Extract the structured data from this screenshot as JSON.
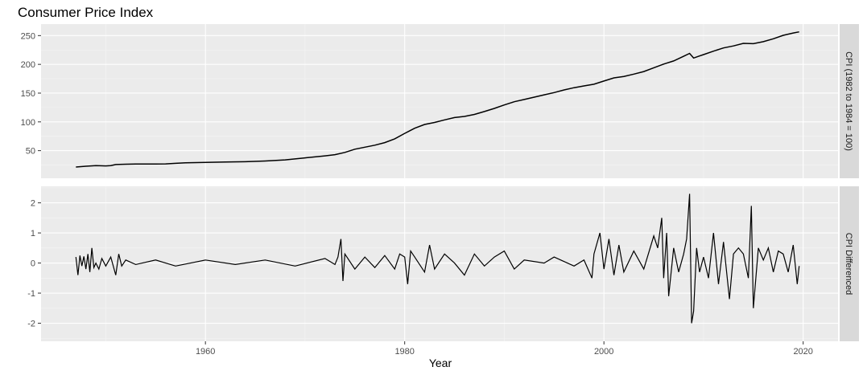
{
  "chart_data": {
    "type": "line",
    "title": "Consumer Price Index",
    "xlabel": "Year",
    "xlim": [
      1943.5,
      2023.5
    ],
    "x_ticks": [
      1960,
      1980,
      2000,
      2020
    ],
    "grid": true,
    "facets": [
      {
        "strip_label": "CPI (1982 to 1984 = 100)",
        "ylim": [
          2,
          270
        ],
        "y_ticks": [
          50,
          100,
          150,
          200,
          250
        ],
        "series": [
          {
            "points": [
              [
                1947.0,
                21.5
              ],
              [
                1948.0,
                23.0
              ],
              [
                1949.0,
                24.0
              ],
              [
                1950.0,
                23.5
              ],
              [
                1950.5,
                24.0
              ],
              [
                1951.0,
                25.8
              ],
              [
                1952.0,
                26.4
              ],
              [
                1953.0,
                26.8
              ],
              [
                1955.0,
                26.8
              ],
              [
                1956.0,
                27.0
              ],
              [
                1957.0,
                28.0
              ],
              [
                1958.0,
                28.8
              ],
              [
                1960.0,
                29.5
              ],
              [
                1962.0,
                30.2
              ],
              [
                1964.0,
                30.8
              ],
              [
                1966.0,
                32.0
              ],
              [
                1968.0,
                34.0
              ],
              [
                1970.0,
                37.5
              ],
              [
                1972.0,
                41.0
              ],
              [
                1973.0,
                43.0
              ],
              [
                1974.0,
                47.0
              ],
              [
                1975.0,
                52.5
              ],
              [
                1976.0,
                56.0
              ],
              [
                1977.0,
                59.5
              ],
              [
                1978.0,
                64.0
              ],
              [
                1979.0,
                70.5
              ],
              [
                1980.0,
                80.0
              ],
              [
                1981.0,
                89.0
              ],
              [
                1982.0,
                95.5
              ],
              [
                1983.0,
                99.0
              ],
              [
                1984.0,
                103.5
              ],
              [
                1985.0,
                107.5
              ],
              [
                1986.0,
                109.5
              ],
              [
                1987.0,
                113.0
              ],
              [
                1988.0,
                118.0
              ],
              [
                1989.0,
                123.5
              ],
              [
                1990.0,
                129.5
              ],
              [
                1991.0,
                135.0
              ],
              [
                1992.0,
                139.0
              ],
              [
                1993.0,
                143.0
              ],
              [
                1994.0,
                147.0
              ],
              [
                1995.0,
                151.0
              ],
              [
                1996.0,
                155.5
              ],
              [
                1997.0,
                159.5
              ],
              [
                1998.0,
                162.5
              ],
              [
                1999.0,
                165.5
              ],
              [
                2000.0,
                171.0
              ],
              [
                2001.0,
                176.5
              ],
              [
                2002.0,
                179.0
              ],
              [
                2003.0,
                183.0
              ],
              [
                2004.0,
                187.5
              ],
              [
                2005.0,
                194.0
              ],
              [
                2006.0,
                200.5
              ],
              [
                2007.0,
                206.0
              ],
              [
                2008.0,
                214.0
              ],
              [
                2008.6,
                219.0
              ],
              [
                2009.0,
                211.0
              ],
              [
                2009.5,
                214.0
              ],
              [
                2010.0,
                217.0
              ],
              [
                2011.0,
                223.0
              ],
              [
                2012.0,
                228.5
              ],
              [
                2013.0,
                232.0
              ],
              [
                2014.0,
                236.5
              ],
              [
                2015.0,
                236.0
              ],
              [
                2016.0,
                239.5
              ],
              [
                2017.0,
                244.5
              ],
              [
                2018.0,
                250.5
              ],
              [
                2019.0,
                254.5
              ],
              [
                2019.6,
                256.5
              ]
            ]
          }
        ]
      },
      {
        "strip_label": "CPI Differenced",
        "ylim": [
          -2.6,
          2.55
        ],
        "y_ticks": [
          -2,
          -1,
          0,
          1,
          2
        ],
        "series": [
          {
            "points": [
              [
                1947.0,
                0.2
              ],
              [
                1947.2,
                -0.4
              ],
              [
                1947.4,
                0.25
              ],
              [
                1947.6,
                -0.1
              ],
              [
                1947.8,
                0.22
              ],
              [
                1948.0,
                -0.2
              ],
              [
                1948.2,
                0.3
              ],
              [
                1948.4,
                -0.3
              ],
              [
                1948.6,
                0.5
              ],
              [
                1948.8,
                -0.15
              ],
              [
                1949.0,
                0.0
              ],
              [
                1949.3,
                -0.2
              ],
              [
                1949.6,
                0.15
              ],
              [
                1950.0,
                -0.1
              ],
              [
                1950.5,
                0.2
              ],
              [
                1951.0,
                -0.4
              ],
              [
                1951.3,
                0.3
              ],
              [
                1951.6,
                -0.1
              ],
              [
                1952.0,
                0.1
              ],
              [
                1953.0,
                -0.05
              ],
              [
                1955.0,
                0.1
              ],
              [
                1957.0,
                -0.1
              ],
              [
                1960.0,
                0.1
              ],
              [
                1963.0,
                -0.05
              ],
              [
                1966.0,
                0.1
              ],
              [
                1969.0,
                -0.1
              ],
              [
                1972.0,
                0.15
              ],
              [
                1973.0,
                -0.05
              ],
              [
                1973.3,
                0.2
              ],
              [
                1973.6,
                0.8
              ],
              [
                1973.8,
                -0.6
              ],
              [
                1974.0,
                0.3
              ],
              [
                1975.0,
                -0.2
              ],
              [
                1976.0,
                0.2
              ],
              [
                1977.0,
                -0.15
              ],
              [
                1978.0,
                0.25
              ],
              [
                1979.0,
                -0.2
              ],
              [
                1979.5,
                0.3
              ],
              [
                1980.0,
                0.2
              ],
              [
                1980.3,
                -0.7
              ],
              [
                1980.6,
                0.4
              ],
              [
                1981.0,
                0.2
              ],
              [
                1982.0,
                -0.3
              ],
              [
                1982.5,
                0.6
              ],
              [
                1983.0,
                -0.2
              ],
              [
                1984.0,
                0.3
              ],
              [
                1985.0,
                0.0
              ],
              [
                1986.0,
                -0.4
              ],
              [
                1987.0,
                0.3
              ],
              [
                1988.0,
                -0.1
              ],
              [
                1989.0,
                0.2
              ],
              [
                1990.0,
                0.4
              ],
              [
                1991.0,
                -0.2
              ],
              [
                1992.0,
                0.1
              ],
              [
                1994.0,
                0.0
              ],
              [
                1995.0,
                0.2
              ],
              [
                1997.0,
                -0.1
              ],
              [
                1998.0,
                0.1
              ],
              [
                1998.8,
                -0.5
              ],
              [
                1999.0,
                0.3
              ],
              [
                1999.6,
                1.0
              ],
              [
                2000.0,
                -0.2
              ],
              [
                2000.5,
                0.8
              ],
              [
                2001.0,
                -0.4
              ],
              [
                2001.5,
                0.6
              ],
              [
                2002.0,
                -0.3
              ],
              [
                2003.0,
                0.4
              ],
              [
                2004.0,
                -0.2
              ],
              [
                2005.0,
                0.9
              ],
              [
                2005.4,
                0.5
              ],
              [
                2005.8,
                1.5
              ],
              [
                2006.0,
                -0.5
              ],
              [
                2006.3,
                1.0
              ],
              [
                2006.5,
                -1.1
              ],
              [
                2007.0,
                0.5
              ],
              [
                2007.5,
                -0.3
              ],
              [
                2008.0,
                0.3
              ],
              [
                2008.3,
                0.8
              ],
              [
                2008.6,
                2.3
              ],
              [
                2008.8,
                -2.0
              ],
              [
                2009.0,
                -1.6
              ],
              [
                2009.3,
                0.5
              ],
              [
                2009.6,
                -0.3
              ],
              [
                2010.0,
                0.2
              ],
              [
                2010.5,
                -0.5
              ],
              [
                2011.0,
                1.0
              ],
              [
                2011.5,
                -0.7
              ],
              [
                2012.0,
                0.7
              ],
              [
                2012.6,
                -1.2
              ],
              [
                2013.0,
                0.3
              ],
              [
                2013.5,
                0.5
              ],
              [
                2014.0,
                0.3
              ],
              [
                2014.5,
                -0.5
              ],
              [
                2014.8,
                1.9
              ],
              [
                2015.0,
                -1.5
              ],
              [
                2015.5,
                0.5
              ],
              [
                2016.0,
                0.1
              ],
              [
                2016.5,
                0.5
              ],
              [
                2017.0,
                -0.3
              ],
              [
                2017.5,
                0.4
              ],
              [
                2018.0,
                0.3
              ],
              [
                2018.5,
                -0.3
              ],
              [
                2019.0,
                0.6
              ],
              [
                2019.4,
                -0.7
              ],
              [
                2019.6,
                -0.1
              ]
            ]
          }
        ]
      }
    ]
  }
}
